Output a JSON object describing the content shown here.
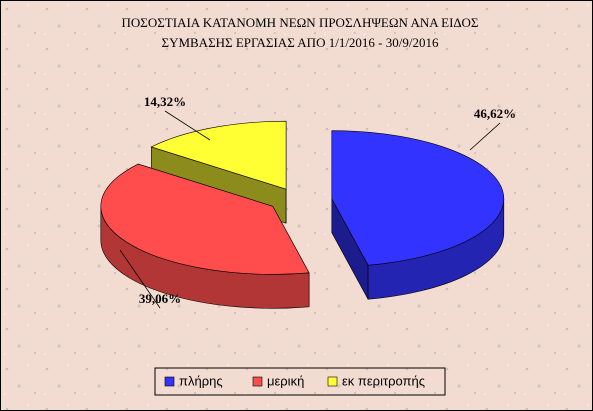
{
  "chart_data": {
    "type": "pie3d",
    "title": [
      "ΠΟΣΟΣΤΙΑΙΑ ΚΑΤΑΝΟΜΗ ΝΕΩΝ ΠΡΟΣΛΗΨΕΩΝ ΑΝΑ ΕΙΔΟΣ",
      "ΣΥΜΒΑΣΗΣ ΕΡΓΑΣΙΑΣ ΑΠΟ  1/1/2016 - 30/9/2016"
    ],
    "categories": [
      "πλήρης",
      "μερική",
      "εκ περιτροπής"
    ],
    "values": [
      46.62,
      39.06,
      14.32
    ],
    "value_labels": [
      "46,62%",
      "39,06%",
      "14,32%"
    ],
    "colors": [
      "#3333ff",
      "#ff4d4d",
      "#ffff33"
    ],
    "legend": "bottom"
  }
}
